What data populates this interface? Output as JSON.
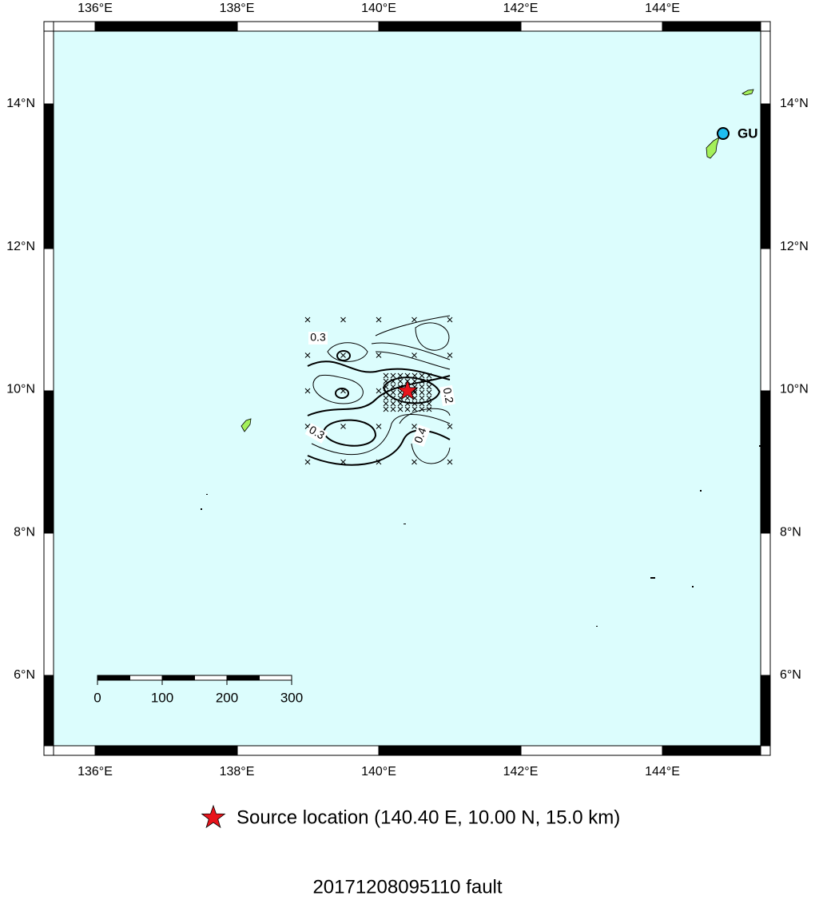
{
  "map": {
    "lon_ticks": [
      "136°E",
      "138°E",
      "140°E",
      "142°E",
      "144°E"
    ],
    "lat_ticks": [
      "14°N",
      "12°N",
      "10°N",
      "8°N",
      "6°N"
    ],
    "station": "GU",
    "contour_labels": [
      "0.3",
      "0.2",
      "0.4",
      "0.3"
    ],
    "scale_labels": [
      "0",
      "100",
      "200",
      "300"
    ]
  },
  "legend": {
    "text": "Source location (140.40 E, 10.00 N, 15.0 km)"
  },
  "footer": {
    "title": "20171208095110 fault"
  }
}
